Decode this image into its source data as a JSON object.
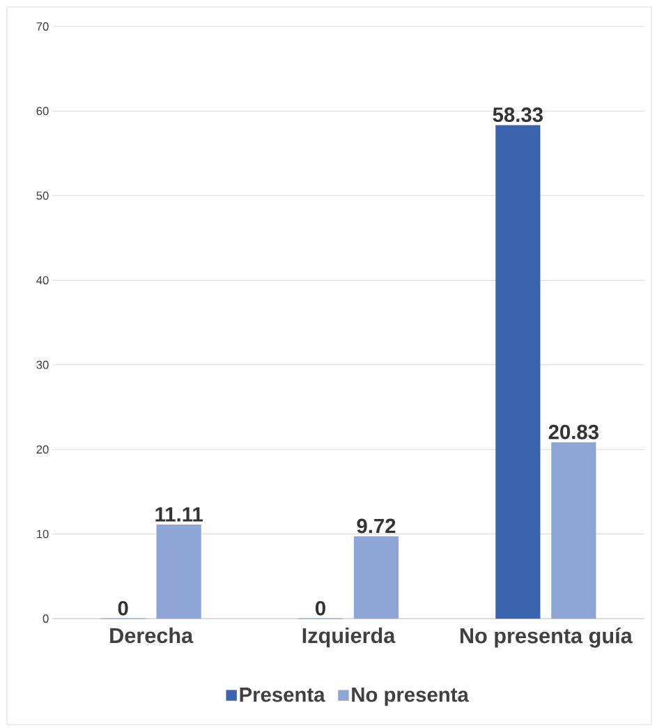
{
  "chart_data": {
    "type": "bar",
    "categories": [
      "Derecha",
      "Izquierda",
      "No presenta guía"
    ],
    "series": [
      {
        "name": "Presenta",
        "color": "#3c64ae",
        "values": [
          0,
          0,
          58.33
        ]
      },
      {
        "name": "No presenta",
        "color": "#8fa5d5",
        "values": [
          11.11,
          9.72,
          20.83
        ]
      }
    ],
    "ylim": [
      0,
      70
    ],
    "yticks": [
      0,
      10,
      20,
      30,
      40,
      50,
      60,
      70
    ],
    "grid": "y",
    "legend": "bottom",
    "data_labels": true
  }
}
